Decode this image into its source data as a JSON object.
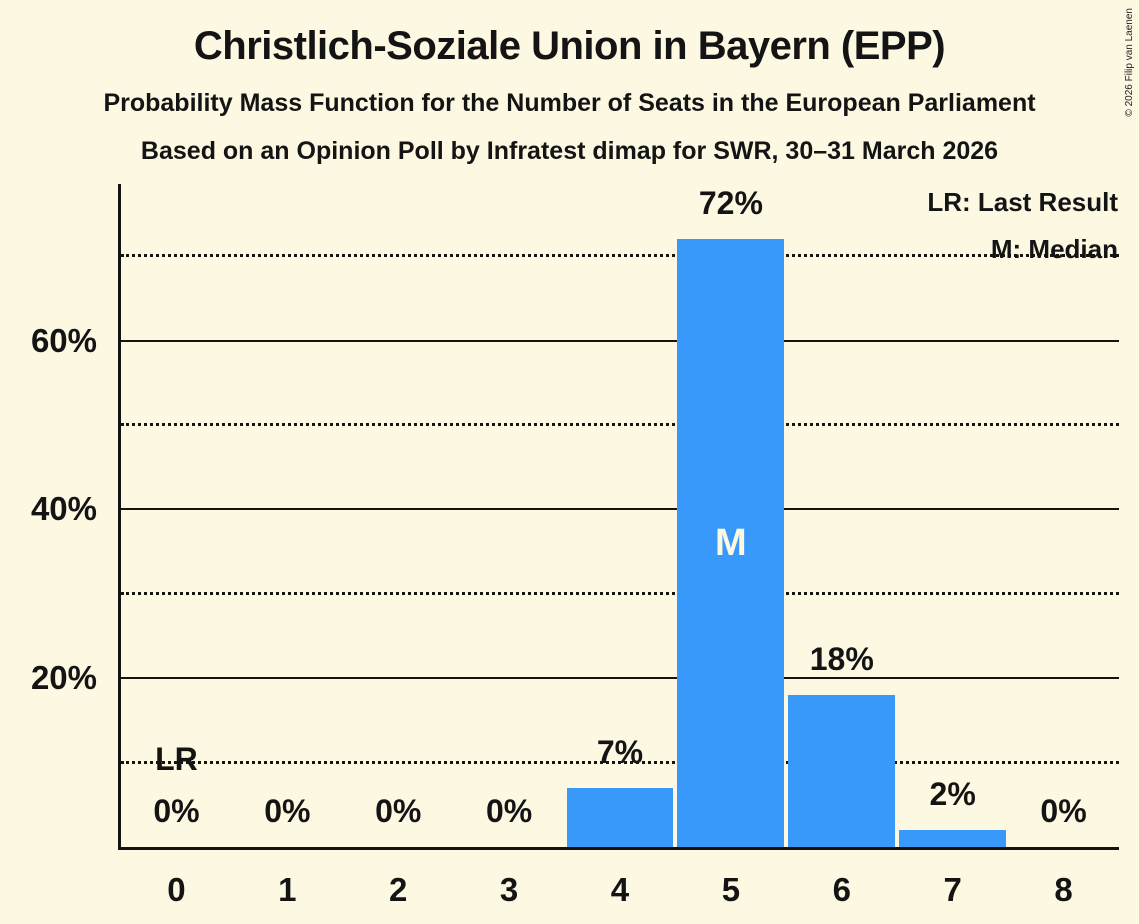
{
  "header": {
    "title": "Christlich-Soziale Union in Bayern (EPP)",
    "subtitle": "Probability Mass Function for the Number of Seats in the European Parliament",
    "source_line": "Based on an Opinion Poll by Infratest dimap for SWR, 30–31 March 2026",
    "copyright": "© 2026 Filip van Laenen"
  },
  "legend": {
    "last_result": "LR: Last Result",
    "median": "M: Median"
  },
  "chart_data": {
    "type": "bar",
    "title": "Christlich-Soziale Union in Bayern (EPP)",
    "subtitle": "Probability Mass Function for the Number of Seats in the European Parliament",
    "source_line": "Based on an Opinion Poll by Infratest dimap for SWR, 30–31 March 2026",
    "categories": [
      "0",
      "1",
      "2",
      "3",
      "4",
      "5",
      "6",
      "7",
      "8"
    ],
    "values": [
      0,
      0,
      0,
      0,
      7,
      72,
      18,
      2,
      0
    ],
    "value_labels": [
      "0%",
      "0%",
      "0%",
      "0%",
      "7%",
      "72%",
      "18%",
      "2%",
      "0%"
    ],
    "xlabel": "",
    "ylabel": "",
    "ylim": [
      0,
      78.5
    ],
    "yticks": [
      20,
      40,
      60
    ],
    "ytick_labels": [
      "20%",
      "40%",
      "60%"
    ],
    "gridlines": {
      "solid": [
        20,
        40,
        60
      ],
      "dotted": [
        10,
        30,
        50,
        70
      ]
    },
    "grid": true,
    "legend_position": "top-right",
    "legend_entries": [
      "LR: Last Result",
      "M: Median"
    ],
    "annotations": {
      "last_result": {
        "label": "LR",
        "category_index": 0
      },
      "median": {
        "label": "M",
        "category_index": 5
      }
    },
    "colors": {
      "bar": "#3999FB",
      "background": "#FDF8E2",
      "text": "#141414",
      "median_letter": "#FDF8E2"
    }
  }
}
